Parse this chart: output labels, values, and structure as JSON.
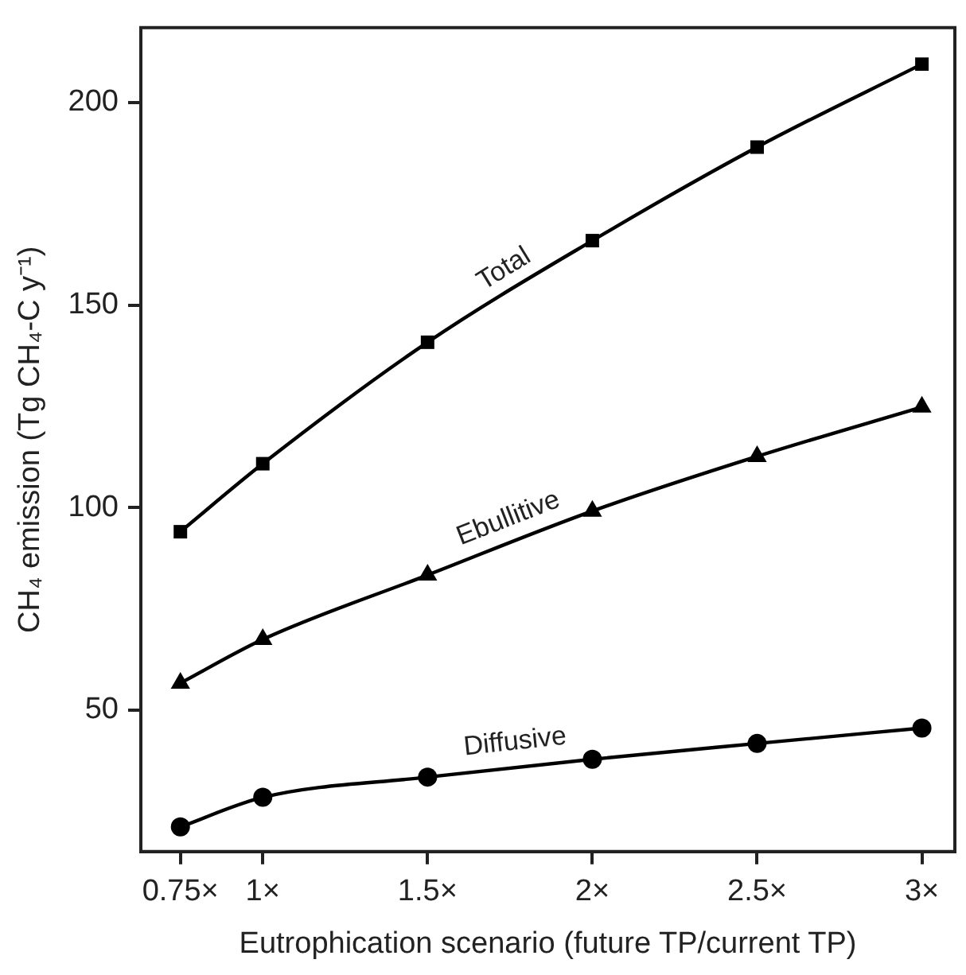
{
  "chart_data": {
    "type": "line",
    "xlabel": "Eutrophication scenario (future TP/current TP)",
    "ylabel": "CH₄ emission (Tg CH₄-C y⁻¹)",
    "x": [
      0.75,
      1,
      1.5,
      2,
      2.5,
      3
    ],
    "series": [
      {
        "name": "Total",
        "color": "#000000",
        "marker": "square",
        "values": [
          94,
          110.8,
          140.8,
          165.9,
          189,
          209.5
        ]
      },
      {
        "name": "Ebullitive",
        "color": "#000000",
        "marker": "triangle",
        "values": [
          56.6,
          67.4,
          83.3,
          99.1,
          112.6,
          124.8
        ]
      },
      {
        "name": "Diffusive",
        "color": "#000000",
        "marker": "circle",
        "values": [
          21.1,
          28.4,
          33.4,
          37.8,
          41.7,
          45.5
        ]
      }
    ],
    "xlim": [
      0.63,
      3.1
    ],
    "xticks": [
      {
        "value": 0.75,
        "label": "0.75×"
      },
      {
        "value": 1,
        "label": "1×"
      },
      {
        "value": 1.5,
        "label": "1.5×"
      },
      {
        "value": 2,
        "label": "2×"
      },
      {
        "value": 2.5,
        "label": "2.5×"
      },
      {
        "value": 3,
        "label": "3×"
      }
    ],
    "ylim": [
      15,
      218.5
    ],
    "yticks": [
      50,
      100,
      150,
      200
    ],
    "grid": false,
    "legend": false,
    "line_style": "solid"
  }
}
